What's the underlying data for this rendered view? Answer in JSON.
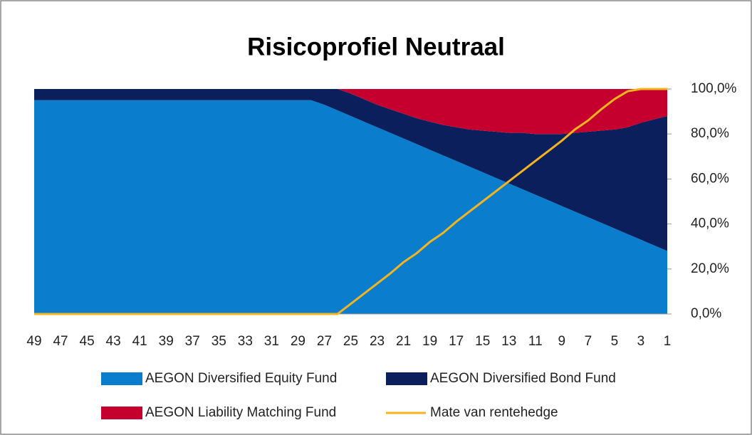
{
  "chart_data": {
    "type": "stacked_area_line",
    "title": "Risicoprofiel Neutraal",
    "categories": [
      49,
      null,
      47,
      null,
      45,
      null,
      43,
      null,
      41,
      null,
      39,
      null,
      37,
      null,
      35,
      null,
      33,
      null,
      31,
      null,
      29,
      null,
      27,
      null,
      25,
      null,
      23,
      null,
      21,
      null,
      19,
      null,
      17,
      null,
      15,
      null,
      13,
      null,
      11,
      null,
      9,
      null,
      7,
      null,
      5,
      null,
      3,
      null,
      1
    ],
    "series": [
      {
        "name": "AEGON Diversified Equity Fund",
        "color": "#0a7dcc",
        "kind": "area",
        "values": [
          95,
          95,
          95,
          95,
          95,
          95,
          95,
          95,
          95,
          95,
          95,
          95,
          95,
          95,
          95,
          95,
          95,
          95,
          95,
          95,
          95,
          95,
          93,
          90.5,
          88,
          85.5,
          83,
          80.5,
          78,
          75.5,
          73,
          70.5,
          68,
          65.5,
          63,
          60.5,
          58,
          55.5,
          53,
          50.5,
          48,
          45.5,
          43,
          40.5,
          38,
          35.5,
          33,
          30.5,
          28
        ]
      },
      {
        "name": "AEGON Diversified Bond Fund",
        "color": "#0b1f5c",
        "kind": "area",
        "values": [
          5,
          5,
          5,
          5,
          5,
          5,
          5,
          5,
          5,
          5,
          5,
          5,
          5,
          5,
          5,
          5,
          5,
          5,
          5,
          5,
          5,
          5,
          7,
          9.5,
          10,
          10,
          10,
          10.5,
          11,
          11.5,
          12.5,
          13.5,
          15,
          16.5,
          18.5,
          20.5,
          22.5,
          25,
          27,
          29.5,
          32,
          35,
          38,
          41,
          44,
          47.5,
          52,
          56,
          60
        ]
      },
      {
        "name": "AEGON Liability Matching Fund",
        "color": "#c5002f",
        "kind": "area",
        "values": [
          0,
          0,
          0,
          0,
          0,
          0,
          0,
          0,
          0,
          0,
          0,
          0,
          0,
          0,
          0,
          0,
          0,
          0,
          0,
          0,
          0,
          0,
          0,
          0,
          2,
          4.5,
          7,
          9,
          11,
          13,
          14.5,
          16,
          17,
          18,
          18.5,
          19,
          19.5,
          19.5,
          20,
          20,
          20,
          19.5,
          19,
          18.5,
          18,
          17,
          15,
          13.5,
          12
        ]
      },
      {
        "name": "Mate van rentehedge",
        "color": "#f4b41f",
        "kind": "line",
        "values": [
          0,
          0,
          0,
          0,
          0,
          0,
          0,
          0,
          0,
          0,
          0,
          0,
          0,
          0,
          0,
          0,
          0,
          0,
          0,
          0,
          0,
          0,
          0,
          0,
          4.5,
          9,
          13.5,
          18,
          23,
          27,
          32,
          36,
          41,
          45.5,
          50,
          54.5,
          59,
          63.5,
          68,
          72.5,
          77,
          82,
          86,
          91,
          95.5,
          99,
          100,
          100,
          100
        ]
      }
    ],
    "ylim": [
      0,
      100
    ],
    "yticks": [
      {
        "value": 0,
        "label": "0,0%"
      },
      {
        "value": 20,
        "label": "20,0%"
      },
      {
        "value": 40,
        "label": "40,0%"
      },
      {
        "value": 60,
        "label": "60,0%"
      },
      {
        "value": 80,
        "label": "80,0%"
      },
      {
        "value": 100,
        "label": "100,0%"
      }
    ],
    "axis_side": "right"
  }
}
